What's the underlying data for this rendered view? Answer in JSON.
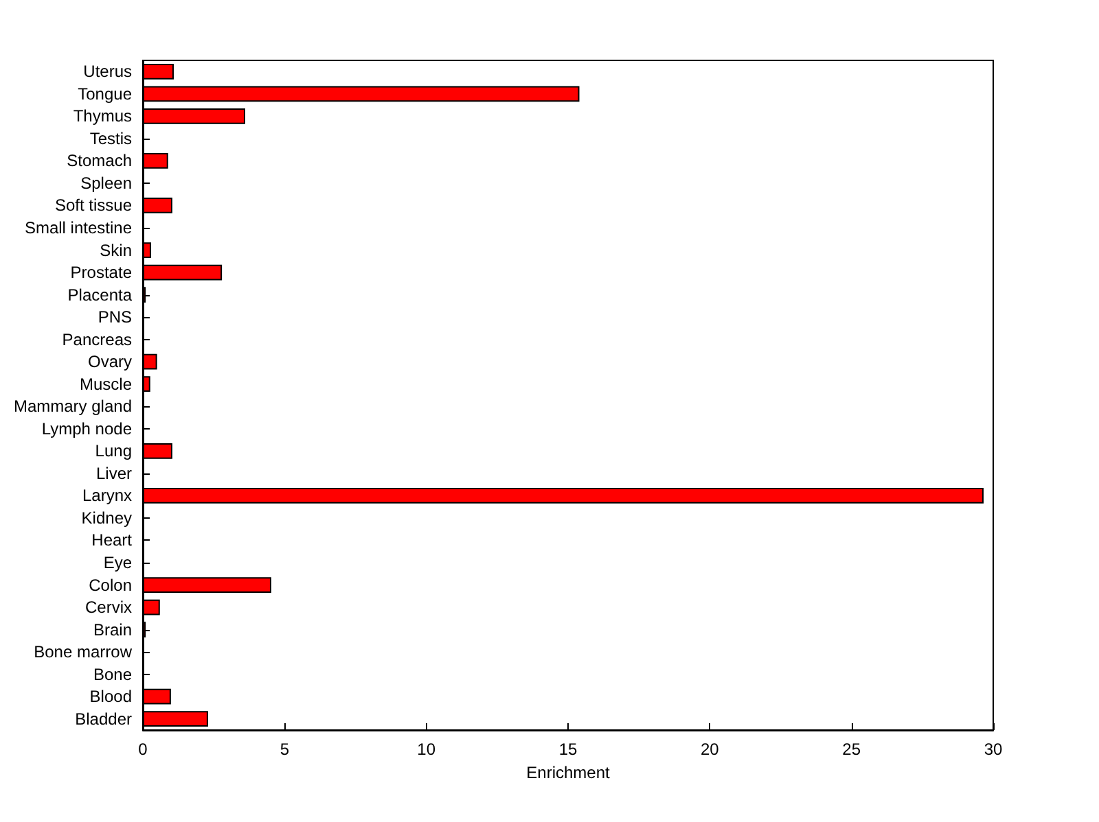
{
  "chart_data": {
    "type": "bar",
    "orientation": "horizontal",
    "xlabel": "Enrichment",
    "categories": [
      "Uterus",
      "Tongue",
      "Thymus",
      "Testis",
      "Stomach",
      "Spleen",
      "Soft tissue",
      "Small intestine",
      "Skin",
      "Prostate",
      "Placenta",
      "PNS",
      "Pancreas",
      "Ovary",
      "Muscle",
      "Mammary gland",
      "Lymph node",
      "Lung",
      "Liver",
      "Larynx",
      "Kidney",
      "Heart",
      "Eye",
      "Colon",
      "Cervix",
      "Brain",
      "Bone marrow",
      "Bone",
      "Blood",
      "Bladder"
    ],
    "values": [
      1.09,
      15.4,
      3.61,
      0,
      0.89,
      0,
      1.04,
      0,
      0.29,
      2.79,
      0.1,
      0,
      0,
      0.5,
      0.26,
      0,
      0,
      1.04,
      0,
      29.66,
      0,
      0,
      0,
      4.53,
      0.6,
      0.1,
      0,
      0,
      0.99,
      2.3
    ],
    "color": "#ff0000",
    "xlim": [
      0,
      30
    ],
    "xticks": [
      0,
      5,
      10,
      15,
      20,
      25,
      30
    ],
    "grid": false
  }
}
